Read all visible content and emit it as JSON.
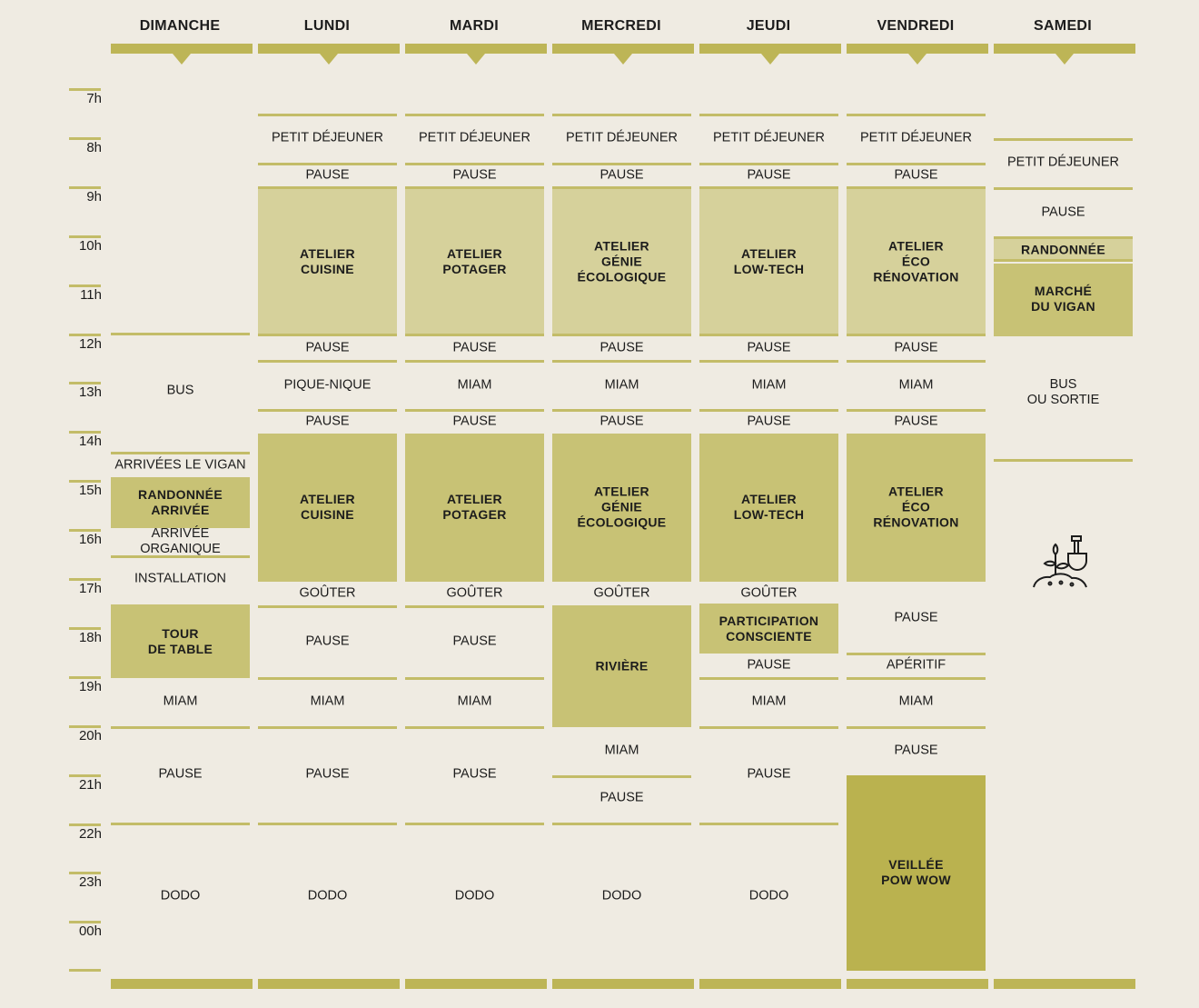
{
  "days": [
    {
      "name": "DIMANCHE",
      "labels": [
        "BUS",
        "ARRIVÉES LE VIGAN",
        "RANDONNÉE\nARRIVÉE",
        "ARRIVÉE ORGANIQUE",
        "INSTALLATION",
        "TOUR\nDE TABLE",
        "MIAM",
        "PAUSE",
        "DODO"
      ]
    },
    {
      "name": "LUNDI",
      "labels": [
        "PETIT DÉJEUNER",
        "PAUSE",
        "ATELIER\nCUISINE",
        "PAUSE",
        "PIQUE-NIQUE",
        "PAUSE",
        "ATELIER\nCUISINE",
        "GOÛTER",
        "PAUSE",
        "MIAM",
        "PAUSE",
        "DODO"
      ]
    },
    {
      "name": "MARDI",
      "labels": [
        "PETIT DÉJEUNER",
        "PAUSE",
        "ATELIER\nPOTAGER",
        "PAUSE",
        "MIAM",
        "PAUSE",
        "ATELIER\nPOTAGER",
        "GOÛTER",
        "PAUSE",
        "MIAM",
        "PAUSE",
        "DODO"
      ]
    },
    {
      "name": "MERCREDI",
      "labels": [
        "PETIT DÉJEUNER",
        "PAUSE",
        "ATELIER\nGÉNIE\nÉCOLOGIQUE",
        "PAUSE",
        "MIAM",
        "PAUSE",
        "ATELIER\nGÉNIE\nÉCOLOGIQUE",
        "GOÛTER",
        "RIVIÈRE",
        "MIAM",
        "PAUSE",
        "DODO"
      ]
    },
    {
      "name": "JEUDI",
      "labels": [
        "PETIT DÉJEUNER",
        "PAUSE",
        "ATELIER\nLOW-TECH",
        "PAUSE",
        "MIAM",
        "PAUSE",
        "ATELIER\nLOW-TECH",
        "GOÛTER",
        "PARTICIPATION\nCONSCIENTE",
        "PAUSE",
        "MIAM",
        "PAUSE",
        "DODO"
      ]
    },
    {
      "name": "VENDREDI",
      "labels": [
        "PETIT DÉJEUNER",
        "PAUSE",
        "ATELIER\nÉCO\nRÉNOVATION",
        "PAUSE",
        "MIAM",
        "PAUSE",
        "ATELIER\nÉCO\nRÉNOVATION",
        "PAUSE",
        "APÉRITIF",
        "MIAM",
        "PAUSE",
        "VEILLÉE\nPOW WOW"
      ]
    },
    {
      "name": "SAMEDI",
      "labels": [
        "PETIT DÉJEUNER",
        "PAUSE",
        "RANDONNÉE",
        "MARCHÉ\nDU VIGAN",
        "BUS\nOU SORTIE"
      ]
    }
  ],
  "hours": [
    "7h",
    "8h",
    "9h",
    "10h",
    "11h",
    "12h",
    "13h",
    "14h",
    "15h",
    "16h",
    "17h",
    "18h",
    "19h",
    "20h",
    "21h",
    "22h",
    "23h",
    "00h"
  ],
  "icons": {
    "decoration": "plant-shovel-icon"
  },
  "colors": {
    "accent": "#bdb556",
    "light_block": "#d6d19b",
    "mid_block": "#c8c275",
    "dark_block": "#bab24f",
    "background": "#efebe2"
  }
}
